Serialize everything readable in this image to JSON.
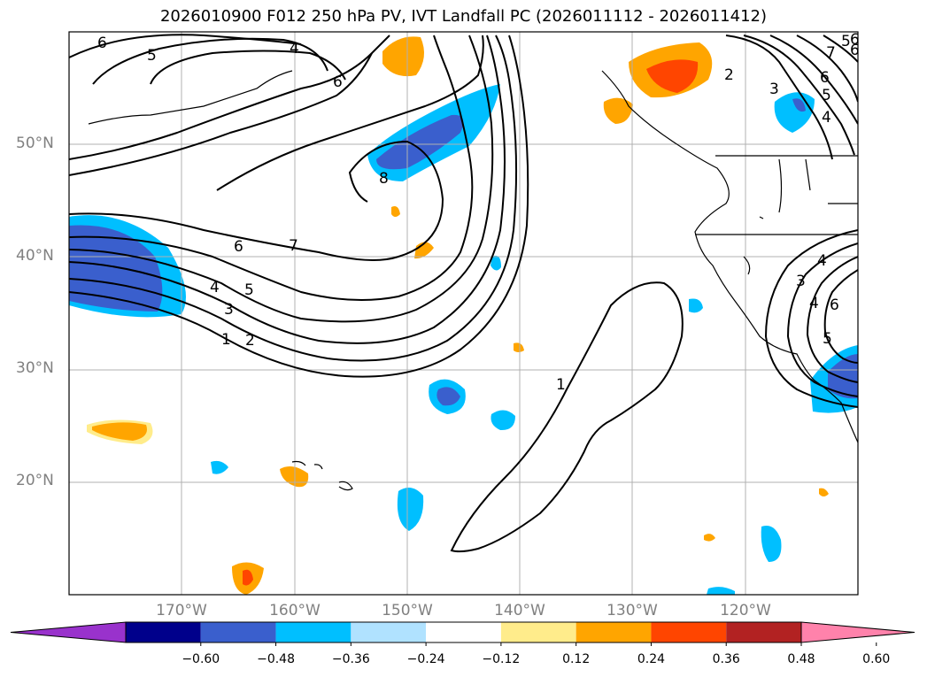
{
  "title": "2026010900 F012 250 hPa PV, IVT Landfall PC (2026011112 - 2026011412)",
  "map": {
    "projection": "mercator",
    "lon_range": [
      -180,
      -110
    ],
    "lat_range": [
      10,
      60
    ],
    "lat_labels": [
      "50°N",
      "40°N",
      "30°N",
      "20°N"
    ],
    "lon_labels": [
      "170°W",
      "160°W",
      "150°W",
      "140°W",
      "130°W",
      "120°W"
    ],
    "contour_labels": [
      "6",
      "5",
      "4",
      "6",
      "7",
      "6",
      "4",
      "5",
      "3",
      "2",
      "1",
      "8",
      "6",
      "7",
      "6",
      "5",
      "4",
      "2",
      "3",
      "6",
      "5",
      "4",
      "3",
      "4",
      "6",
      "5",
      "1"
    ]
  },
  "colorbar": {
    "colors": [
      "#9932cc",
      "#00008b",
      "#3a5fcd",
      "#00bfff",
      "#b0e2ff",
      "#ffffff",
      "#ffec8b",
      "#ffa500",
      "#ff4500",
      "#b22222",
      "#ff82ab"
    ],
    "tick_labels": [
      "−0.60",
      "−0.48",
      "−0.36",
      "−0.24",
      "−0.12",
      "0.12",
      "0.24",
      "0.36",
      "0.48",
      "0.60"
    ]
  },
  "legend_colors": {
    "pos_high": "#ff4500",
    "pos_mid": "#ffa500",
    "pos_low": "#ffec8b",
    "neg_low": "#b0e2ff",
    "neg_mid": "#00bfff",
    "neg_high": "#3a5fcd"
  }
}
